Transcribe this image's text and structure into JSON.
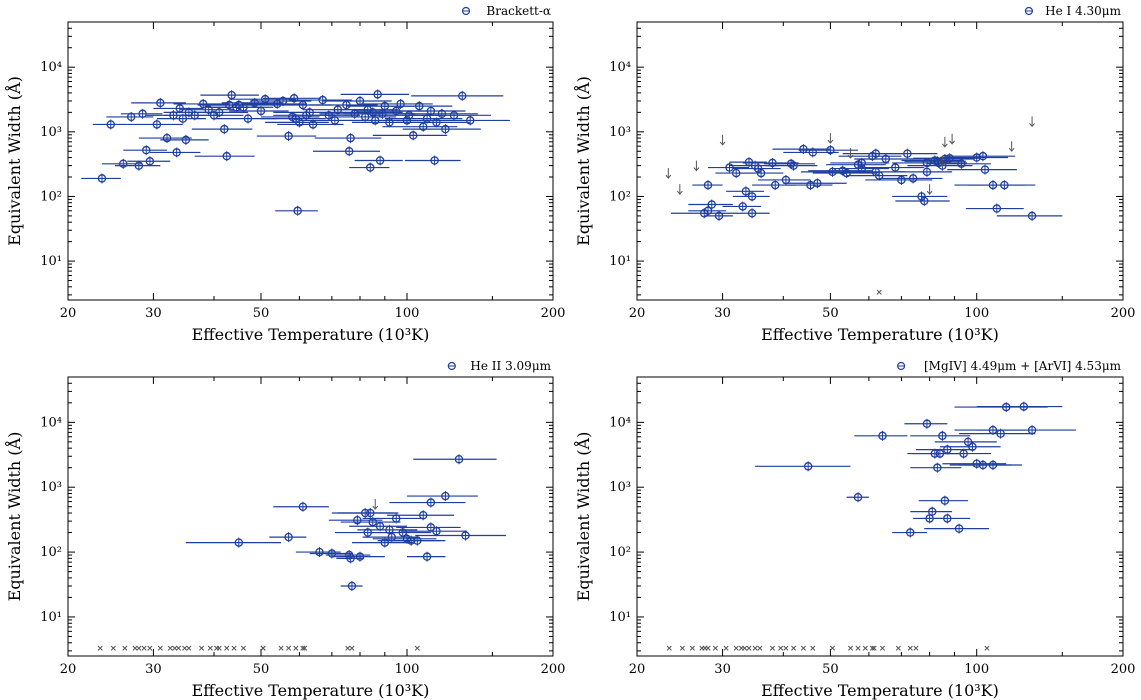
{
  "figure": {
    "shared_axes": {
      "xlabel": "Effective Temperature (10³K)",
      "ylabel": "Equivalent Width (Å)",
      "x_scale": "log",
      "y_scale": "log",
      "xlim": [
        20,
        200
      ],
      "ylim": [
        2.5,
        50000
      ],
      "x_ticks": [
        20,
        30,
        50,
        100,
        200
      ],
      "x_tick_labels": [
        "20",
        "30",
        "50",
        "100",
        "200"
      ],
      "y_ticks": [
        10,
        100,
        1000,
        10000
      ],
      "y_tick_labels": [
        "10¹",
        "10²",
        "10³",
        "10⁴"
      ]
    },
    "colors": {
      "detection": "#1f3fa0",
      "marker_edge": "#1f3fa0",
      "upper_limit": "#555555",
      "non_detection": "#555555"
    }
  },
  "chart_data": [
    {
      "type": "scatter",
      "panel": "top-left",
      "legend": "Brackett-α",
      "legend_position": "top-right",
      "points": [
        [
          23.5,
          190,
          2.2
        ],
        [
          24.5,
          1300,
          2.0
        ],
        [
          26,
          320,
          2.5
        ],
        [
          27,
          1700,
          3
        ],
        [
          28,
          300,
          3
        ],
        [
          28.5,
          1900,
          2.8
        ],
        [
          29,
          520,
          3
        ],
        [
          29.5,
          350,
          3
        ],
        [
          30.5,
          1300,
          4
        ],
        [
          31,
          2800,
          4
        ],
        [
          32,
          800,
          4
        ],
        [
          33,
          1800,
          4
        ],
        [
          33.5,
          480,
          4
        ],
        [
          34,
          2300,
          4
        ],
        [
          34.5,
          1600,
          4
        ],
        [
          35,
          750,
          4
        ],
        [
          35.5,
          2000,
          4
        ],
        [
          36.5,
          1800,
          5
        ],
        [
          38,
          2700,
          5
        ],
        [
          39,
          2200,
          5
        ],
        [
          40,
          1800,
          6
        ],
        [
          41,
          2000,
          6
        ],
        [
          42,
          1100,
          6
        ],
        [
          42.5,
          420,
          6
        ],
        [
          43,
          2600,
          6
        ],
        [
          43.5,
          3700,
          6
        ],
        [
          44.5,
          2400,
          6
        ],
        [
          45,
          2600,
          7
        ],
        [
          46,
          2400,
          7
        ],
        [
          47,
          1600,
          7
        ],
        [
          48.5,
          2800,
          7
        ],
        [
          50,
          2100,
          7
        ],
        [
          51,
          3200,
          8
        ],
        [
          54,
          2700,
          8
        ],
        [
          55.5,
          3000,
          8
        ],
        [
          57,
          860,
          8
        ],
        [
          58,
          1700,
          8
        ],
        [
          58.5,
          3300,
          8
        ],
        [
          59,
          1600,
          9
        ],
        [
          59.5,
          60,
          6
        ],
        [
          60,
          1400,
          9
        ],
        [
          61,
          2600,
          9
        ],
        [
          62,
          1800,
          9
        ],
        [
          63,
          2000,
          10
        ],
        [
          64,
          1300,
          10
        ],
        [
          67,
          3100,
          10
        ],
        [
          69,
          1800,
          11
        ],
        [
          71,
          1500,
          11
        ],
        [
          72,
          2200,
          11
        ],
        [
          75,
          2600,
          12
        ],
        [
          76,
          500,
          12
        ],
        [
          76.5,
          800,
          12
        ],
        [
          78,
          1900,
          12
        ],
        [
          80,
          3000,
          13
        ],
        [
          82,
          1700,
          13
        ],
        [
          83,
          2200,
          13
        ],
        [
          84,
          280,
          8
        ],
        [
          85,
          2000,
          13
        ],
        [
          86,
          1500,
          14
        ],
        [
          87,
          3800,
          14
        ],
        [
          88,
          360,
          10
        ],
        [
          89,
          1900,
          15
        ],
        [
          90,
          2500,
          15
        ],
        [
          92,
          1400,
          15
        ],
        [
          95,
          2100,
          16
        ],
        [
          97,
          2700,
          16
        ],
        [
          100,
          1500,
          17
        ],
        [
          101,
          1800,
          17
        ],
        [
          103,
          880,
          18
        ],
        [
          106,
          2500,
          18
        ],
        [
          108,
          1200,
          19
        ],
        [
          110,
          1600,
          20
        ],
        [
          112,
          2100,
          20
        ],
        [
          114,
          360,
          15
        ],
        [
          115,
          1400,
          20
        ],
        [
          118,
          1900,
          22
        ],
        [
          120,
          1100,
          22
        ],
        [
          125,
          1800,
          24
        ],
        [
          130,
          3600,
          28
        ],
        [
          135,
          1500,
          28
        ]
      ],
      "upper_limits": [],
      "non_detections": []
    },
    {
      "type": "scatter",
      "panel": "top-right",
      "legend": "He I 4.30μm",
      "legend_position": "top-right",
      "points": [
        [
          27.5,
          55,
          4
        ],
        [
          28,
          150,
          2
        ],
        [
          28,
          60,
          2.5
        ],
        [
          28.5,
          75,
          3
        ],
        [
          29.5,
          50,
          2
        ],
        [
          31,
          280,
          3
        ],
        [
          32,
          230,
          3
        ],
        [
          33,
          70,
          3
        ],
        [
          33.5,
          120,
          3
        ],
        [
          34,
          340,
          3
        ],
        [
          34.5,
          55,
          3
        ],
        [
          34.5,
          100,
          3
        ],
        [
          35,
          300,
          4
        ],
        [
          35.5,
          270,
          4
        ],
        [
          36,
          230,
          4
        ],
        [
          38,
          330,
          5
        ],
        [
          38.5,
          150,
          4
        ],
        [
          40.5,
          180,
          5
        ],
        [
          41.5,
          320,
          5
        ],
        [
          42,
          300,
          5
        ],
        [
          44,
          540,
          6
        ],
        [
          45.5,
          150,
          5
        ],
        [
          46,
          480,
          6
        ],
        [
          47,
          160,
          7
        ],
        [
          50,
          520,
          7
        ],
        [
          50.5,
          240,
          7
        ],
        [
          53,
          250,
          8
        ],
        [
          54,
          230,
          8
        ],
        [
          57,
          310,
          8
        ],
        [
          58,
          330,
          8
        ],
        [
          58,
          270,
          8
        ],
        [
          61,
          420,
          9
        ],
        [
          62,
          460,
          9
        ],
        [
          62,
          240,
          9
        ],
        [
          63,
          210,
          9
        ],
        [
          65,
          380,
          9
        ],
        [
          68,
          280,
          10
        ],
        [
          70,
          180,
          11
        ],
        [
          72,
          460,
          11
        ],
        [
          74,
          190,
          11
        ],
        [
          77,
          100,
          10
        ],
        [
          78,
          85,
          10
        ],
        [
          79,
          240,
          10
        ],
        [
          79,
          330,
          12
        ],
        [
          82,
          360,
          12
        ],
        [
          83,
          350,
          12
        ],
        [
          83.5,
          330,
          12
        ],
        [
          85,
          300,
          13
        ],
        [
          86,
          380,
          13
        ],
        [
          88,
          390,
          14
        ],
        [
          93,
          320,
          14
        ],
        [
          100,
          400,
          16
        ],
        [
          103,
          420,
          17
        ],
        [
          104,
          260,
          17
        ],
        [
          108,
          150,
          18
        ],
        [
          110,
          65,
          15
        ],
        [
          114,
          150,
          18
        ],
        [
          130,
          50,
          20
        ]
      ],
      "upper_limits": [
        [
          23.2,
          230
        ],
        [
          24.5,
          130
        ],
        [
          26.5,
          300
        ],
        [
          30,
          750
        ],
        [
          50,
          800
        ],
        [
          55,
          470
        ],
        [
          80,
          130
        ],
        [
          85,
          350
        ],
        [
          86,
          700
        ],
        [
          89,
          780
        ],
        [
          118,
          600
        ],
        [
          130,
          1450
        ]
      ],
      "non_detections": [
        [
          63,
          3.3
        ]
      ]
    },
    {
      "type": "scatter",
      "panel": "bottom-left",
      "legend": "He II 3.09μm",
      "legend_position": "top-right",
      "points": [
        [
          45,
          140,
          10
        ],
        [
          57,
          170,
          5
        ],
        [
          61,
          500,
          8
        ],
        [
          66,
          100,
          7
        ],
        [
          70,
          95,
          7
        ],
        [
          76,
          90,
          8
        ],
        [
          76.5,
          80,
          5
        ],
        [
          77,
          30,
          4
        ],
        [
          79,
          310,
          10
        ],
        [
          80,
          85,
          10
        ],
        [
          82,
          400,
          12
        ],
        [
          83,
          200,
          12
        ],
        [
          84,
          400,
          12
        ],
        [
          85,
          290,
          12
        ],
        [
          88,
          250,
          12
        ],
        [
          90,
          140,
          13
        ],
        [
          92,
          220,
          13
        ],
        [
          93,
          170,
          12
        ],
        [
          95,
          330,
          14
        ],
        [
          98,
          200,
          14
        ],
        [
          100,
          160,
          15
        ],
        [
          102,
          150,
          15
        ],
        [
          105,
          150,
          15
        ],
        [
          108,
          370,
          17
        ],
        [
          110,
          85,
          10
        ],
        [
          112,
          240,
          17
        ],
        [
          112,
          580,
          20
        ],
        [
          115,
          210,
          18
        ],
        [
          120,
          730,
          20
        ],
        [
          128,
          2700,
          25
        ],
        [
          132,
          180,
          28
        ]
      ],
      "upper_limits": [
        [
          86,
          550
        ]
      ],
      "non_detections": [
        [
          23.3,
          3.3
        ],
        [
          24.8,
          3.3
        ],
        [
          26.2,
          3.3
        ],
        [
          27.5,
          3.3
        ],
        [
          28,
          3.3
        ],
        [
          28.7,
          3.3
        ],
        [
          29.5,
          3.3
        ],
        [
          31,
          3.3
        ],
        [
          32.5,
          3.3
        ],
        [
          33.2,
          3.3
        ],
        [
          33.8,
          3.3
        ],
        [
          34.8,
          3.3
        ],
        [
          35.5,
          3.3
        ],
        [
          37.7,
          3.3
        ],
        [
          39.3,
          3.3
        ],
        [
          40.5,
          3.3
        ],
        [
          41,
          3.3
        ],
        [
          42.5,
          3.3
        ],
        [
          44,
          3.3
        ],
        [
          46,
          3.3
        ],
        [
          50.5,
          3.3
        ],
        [
          50.5,
          3.3
        ],
        [
          55,
          3.3
        ],
        [
          57,
          3.3
        ],
        [
          59,
          3.3
        ],
        [
          61,
          3.3
        ],
        [
          61.5,
          3.3
        ],
        [
          75.5,
          3.3
        ],
        [
          77,
          3.3
        ],
        [
          105,
          3.3
        ]
      ]
    },
    {
      "type": "scatter",
      "panel": "bottom-right",
      "legend": "[MgIV] 4.49μm + [ArVI] 4.53μm",
      "legend_position": "top-right",
      "points": [
        [
          45,
          2100,
          10
        ],
        [
          57,
          700,
          3
        ],
        [
          64,
          6200,
          8
        ],
        [
          73,
          200,
          6
        ],
        [
          79,
          9500,
          8
        ],
        [
          80,
          330,
          6
        ],
        [
          81,
          420,
          8
        ],
        [
          82,
          3300,
          10
        ],
        [
          83,
          2000,
          10
        ],
        [
          84,
          3300,
          10
        ],
        [
          85,
          6200,
          12
        ],
        [
          86,
          620,
          10
        ],
        [
          87,
          330,
          10
        ],
        [
          87,
          3800,
          12
        ],
        [
          92,
          230,
          14
        ],
        [
          94,
          3300,
          13
        ],
        [
          96,
          5000,
          14
        ],
        [
          98,
          4200,
          14
        ],
        [
          100,
          2300,
          15
        ],
        [
          103,
          2200,
          15
        ],
        [
          108,
          7600,
          18
        ],
        [
          108,
          2200,
          16
        ],
        [
          112,
          6700,
          20
        ],
        [
          115,
          17200,
          25
        ],
        [
          125,
          17500,
          25
        ],
        [
          130,
          7600,
          30
        ]
      ],
      "upper_limits": [],
      "non_detections": [
        [
          23.3,
          3.3
        ],
        [
          24.8,
          3.3
        ],
        [
          26,
          3.3
        ],
        [
          27.2,
          3.3
        ],
        [
          27.6,
          3.3
        ],
        [
          28,
          3.3
        ],
        [
          29,
          3.3
        ],
        [
          30.5,
          3.3
        ],
        [
          32,
          3.3
        ],
        [
          32.8,
          3.3
        ],
        [
          33.3,
          3.3
        ],
        [
          34,
          3.3
        ],
        [
          35,
          3.3
        ],
        [
          35.8,
          3.3
        ],
        [
          38,
          3.3
        ],
        [
          39.5,
          3.3
        ],
        [
          40.5,
          3.3
        ],
        [
          42,
          3.3
        ],
        [
          44,
          3.3
        ],
        [
          46,
          3.3
        ],
        [
          50.5,
          3.3
        ],
        [
          55,
          3.3
        ],
        [
          57,
          3.3
        ],
        [
          59,
          3.3
        ],
        [
          61,
          3.3
        ],
        [
          61.5,
          3.3
        ],
        [
          64,
          3.3
        ],
        [
          69,
          3.3
        ],
        [
          73,
          3.3
        ],
        [
          75,
          3.3
        ],
        [
          105,
          3.3
        ]
      ]
    }
  ]
}
